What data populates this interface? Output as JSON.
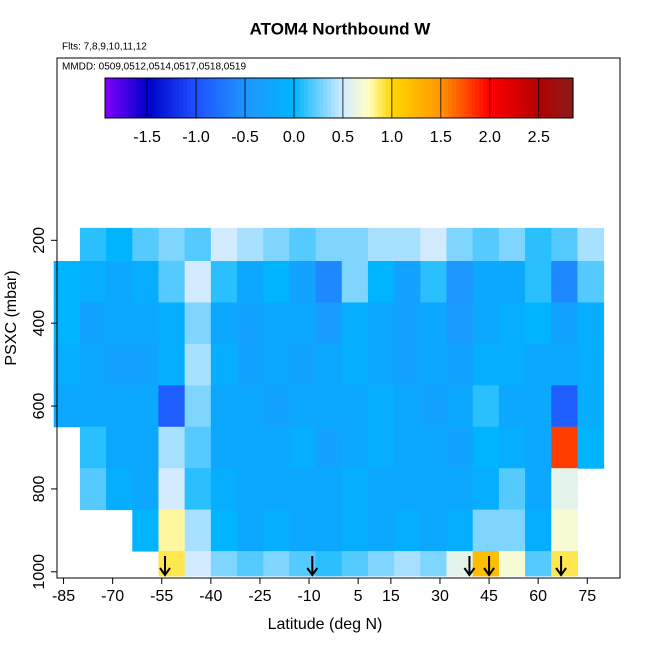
{
  "chart_data": {
    "type": "heatmap",
    "title": "ATOM4 Northbound W",
    "subtitle": "Flts: 7,8,9,10,11,12",
    "annotation": "MMDD: 0509,0512,0514,0517,0518,0519",
    "x_label": "Latitude (deg N)",
    "y_label": "PSXC (mbar)",
    "xlim": [
      -87,
      85
    ],
    "ylim": [
      1015,
      -240
    ],
    "xticks": [
      -85,
      -70,
      -55,
      -40,
      -25,
      -10,
      5,
      15,
      30,
      45,
      60,
      75
    ],
    "yticks": [
      200,
      400,
      600,
      800,
      1000
    ],
    "x_edges": [
      -88,
      -80,
      -72,
      -64,
      -56,
      -48,
      -40,
      -32,
      -24,
      -16,
      -8,
      0,
      8,
      16,
      24,
      32,
      40,
      48,
      56,
      64,
      72,
      80
    ],
    "y_edges": [
      170,
      250,
      350,
      450,
      550,
      650,
      750,
      850,
      950,
      1010
    ],
    "values": [
      [
        null,
        0.1,
        0.0,
        0.2,
        0.3,
        0.2,
        0.5,
        0.4,
        0.3,
        0.2,
        0.3,
        0.3,
        0.4,
        0.4,
        0.5,
        0.3,
        0.2,
        0.3,
        0.1,
        0.2,
        0.4
      ],
      [
        0.0,
        -0.1,
        -0.2,
        -0.1,
        0.2,
        0.5,
        0.1,
        -0.2,
        0.0,
        -0.3,
        -0.6,
        0.3,
        0.0,
        -0.3,
        0.1,
        -0.5,
        -0.2,
        -0.2,
        0.1,
        -0.6,
        0.2
      ],
      [
        0.0,
        -0.3,
        -0.2,
        -0.2,
        -0.1,
        0.3,
        -0.2,
        -0.3,
        -0.2,
        -0.2,
        -0.4,
        -0.1,
        -0.2,
        -0.3,
        -0.2,
        -0.4,
        -0.2,
        -0.1,
        0.0,
        -0.3,
        -0.1
      ],
      [
        -0.1,
        -0.2,
        -0.3,
        -0.3,
        -0.1,
        0.4,
        -0.1,
        -0.3,
        -0.2,
        -0.3,
        -0.2,
        -0.1,
        -0.2,
        -0.3,
        -0.2,
        -0.3,
        -0.1,
        -0.1,
        -0.2,
        -0.2,
        -0.1
      ],
      [
        -0.2,
        -0.2,
        -0.2,
        -0.2,
        -0.9,
        0.3,
        -0.2,
        -0.2,
        -0.3,
        -0.2,
        -0.2,
        -0.2,
        -0.1,
        -0.2,
        -0.3,
        -0.2,
        0.1,
        -0.2,
        -0.2,
        -0.9,
        -0.1
      ],
      [
        null,
        0.1,
        -0.2,
        -0.2,
        0.4,
        0.2,
        -0.2,
        -0.2,
        -0.2,
        -0.1,
        -0.3,
        -0.2,
        -0.1,
        -0.2,
        -0.2,
        -0.3,
        0.0,
        -0.1,
        -0.2,
        1.8,
        0.0
      ],
      [
        null,
        0.2,
        -0.1,
        -0.2,
        0.5,
        0.1,
        -0.1,
        -0.2,
        -0.2,
        -0.2,
        -0.2,
        -0.1,
        -0.2,
        -0.2,
        -0.2,
        -0.2,
        -0.1,
        0.2,
        -0.2,
        0.6,
        null
      ],
      [
        null,
        null,
        null,
        0.0,
        0.8,
        0.4,
        0.0,
        -0.2,
        -0.1,
        -0.2,
        -0.2,
        -0.1,
        -0.2,
        -0.1,
        -0.2,
        -0.1,
        0.3,
        0.3,
        -0.1,
        0.7,
        null
      ],
      [
        null,
        null,
        null,
        null,
        0.9,
        0.5,
        0.3,
        0.2,
        0.3,
        0.2,
        0.1,
        0.2,
        0.3,
        0.4,
        0.3,
        0.6,
        1.2,
        0.7,
        0.2,
        0.9,
        null
      ]
    ],
    "arrows": [
      -54,
      -9,
      39,
      45,
      67
    ],
    "colorbar_lim": [
      -1.93,
      2.85
    ],
    "colorbar_ticks": [
      -1.5,
      {
        "value": -1,
        "label": "-1.0"
      },
      -0.5,
      {
        "value": 0,
        "label": "0.0"
      },
      0.5,
      {
        "value": 1,
        "label": "1.0"
      },
      1.5,
      {
        "value": 2,
        "label": "2.0"
      },
      2.5
    ],
    "colormap": [
      {
        "value": -1.93,
        "color": "#8000ff"
      },
      {
        "value": -1.5,
        "color": "#0000c8"
      },
      {
        "value": -1,
        "color": "#1e50ff"
      },
      {
        "value": -0.5,
        "color": "#1e96ff"
      },
      {
        "value": 0,
        "color": "#00b4ff"
      },
      {
        "value": 0.5,
        "color": "#d2ebff"
      },
      {
        "value": 0.75,
        "color": "#ffffc8"
      },
      {
        "value": 1,
        "color": "#ffd700"
      },
      {
        "value": 1.5,
        "color": "#ff9600"
      },
      {
        "value": 2,
        "color": "#ff0000"
      },
      {
        "value": 2.5,
        "color": "#b40000"
      },
      {
        "value": 2.85,
        "color": "#8b1a1a"
      }
    ]
  }
}
